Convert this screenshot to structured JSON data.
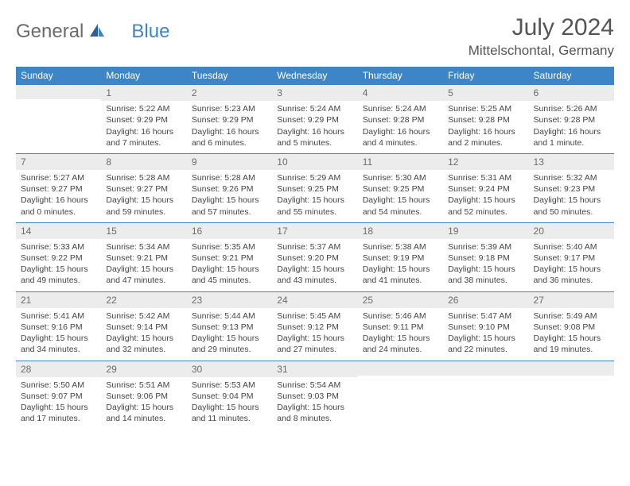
{
  "brand": {
    "part1": "General",
    "part2": "Blue"
  },
  "title": "July 2024",
  "location": "Mittelschontal, Germany",
  "colors": {
    "header_bg": "#3d85c6",
    "header_text": "#ffffff",
    "daynum_bg": "#ececec",
    "border": "#3d85c6",
    "text": "#444444",
    "brand_gray": "#6b6b6b",
    "brand_blue": "#3d85c6"
  },
  "weekdays": [
    "Sunday",
    "Monday",
    "Tuesday",
    "Wednesday",
    "Thursday",
    "Friday",
    "Saturday"
  ],
  "weeks": [
    [
      {
        "n": "",
        "sr": "",
        "ss": "",
        "dl": ""
      },
      {
        "n": "1",
        "sr": "Sunrise: 5:22 AM",
        "ss": "Sunset: 9:29 PM",
        "dl": "Daylight: 16 hours and 7 minutes."
      },
      {
        "n": "2",
        "sr": "Sunrise: 5:23 AM",
        "ss": "Sunset: 9:29 PM",
        "dl": "Daylight: 16 hours and 6 minutes."
      },
      {
        "n": "3",
        "sr": "Sunrise: 5:24 AM",
        "ss": "Sunset: 9:29 PM",
        "dl": "Daylight: 16 hours and 5 minutes."
      },
      {
        "n": "4",
        "sr": "Sunrise: 5:24 AM",
        "ss": "Sunset: 9:28 PM",
        "dl": "Daylight: 16 hours and 4 minutes."
      },
      {
        "n": "5",
        "sr": "Sunrise: 5:25 AM",
        "ss": "Sunset: 9:28 PM",
        "dl": "Daylight: 16 hours and 2 minutes."
      },
      {
        "n": "6",
        "sr": "Sunrise: 5:26 AM",
        "ss": "Sunset: 9:28 PM",
        "dl": "Daylight: 16 hours and 1 minute."
      }
    ],
    [
      {
        "n": "7",
        "sr": "Sunrise: 5:27 AM",
        "ss": "Sunset: 9:27 PM",
        "dl": "Daylight: 16 hours and 0 minutes."
      },
      {
        "n": "8",
        "sr": "Sunrise: 5:28 AM",
        "ss": "Sunset: 9:27 PM",
        "dl": "Daylight: 15 hours and 59 minutes."
      },
      {
        "n": "9",
        "sr": "Sunrise: 5:28 AM",
        "ss": "Sunset: 9:26 PM",
        "dl": "Daylight: 15 hours and 57 minutes."
      },
      {
        "n": "10",
        "sr": "Sunrise: 5:29 AM",
        "ss": "Sunset: 9:25 PM",
        "dl": "Daylight: 15 hours and 55 minutes."
      },
      {
        "n": "11",
        "sr": "Sunrise: 5:30 AM",
        "ss": "Sunset: 9:25 PM",
        "dl": "Daylight: 15 hours and 54 minutes."
      },
      {
        "n": "12",
        "sr": "Sunrise: 5:31 AM",
        "ss": "Sunset: 9:24 PM",
        "dl": "Daylight: 15 hours and 52 minutes."
      },
      {
        "n": "13",
        "sr": "Sunrise: 5:32 AM",
        "ss": "Sunset: 9:23 PM",
        "dl": "Daylight: 15 hours and 50 minutes."
      }
    ],
    [
      {
        "n": "14",
        "sr": "Sunrise: 5:33 AM",
        "ss": "Sunset: 9:22 PM",
        "dl": "Daylight: 15 hours and 49 minutes."
      },
      {
        "n": "15",
        "sr": "Sunrise: 5:34 AM",
        "ss": "Sunset: 9:21 PM",
        "dl": "Daylight: 15 hours and 47 minutes."
      },
      {
        "n": "16",
        "sr": "Sunrise: 5:35 AM",
        "ss": "Sunset: 9:21 PM",
        "dl": "Daylight: 15 hours and 45 minutes."
      },
      {
        "n": "17",
        "sr": "Sunrise: 5:37 AM",
        "ss": "Sunset: 9:20 PM",
        "dl": "Daylight: 15 hours and 43 minutes."
      },
      {
        "n": "18",
        "sr": "Sunrise: 5:38 AM",
        "ss": "Sunset: 9:19 PM",
        "dl": "Daylight: 15 hours and 41 minutes."
      },
      {
        "n": "19",
        "sr": "Sunrise: 5:39 AM",
        "ss": "Sunset: 9:18 PM",
        "dl": "Daylight: 15 hours and 38 minutes."
      },
      {
        "n": "20",
        "sr": "Sunrise: 5:40 AM",
        "ss": "Sunset: 9:17 PM",
        "dl": "Daylight: 15 hours and 36 minutes."
      }
    ],
    [
      {
        "n": "21",
        "sr": "Sunrise: 5:41 AM",
        "ss": "Sunset: 9:16 PM",
        "dl": "Daylight: 15 hours and 34 minutes."
      },
      {
        "n": "22",
        "sr": "Sunrise: 5:42 AM",
        "ss": "Sunset: 9:14 PM",
        "dl": "Daylight: 15 hours and 32 minutes."
      },
      {
        "n": "23",
        "sr": "Sunrise: 5:44 AM",
        "ss": "Sunset: 9:13 PM",
        "dl": "Daylight: 15 hours and 29 minutes."
      },
      {
        "n": "24",
        "sr": "Sunrise: 5:45 AM",
        "ss": "Sunset: 9:12 PM",
        "dl": "Daylight: 15 hours and 27 minutes."
      },
      {
        "n": "25",
        "sr": "Sunrise: 5:46 AM",
        "ss": "Sunset: 9:11 PM",
        "dl": "Daylight: 15 hours and 24 minutes."
      },
      {
        "n": "26",
        "sr": "Sunrise: 5:47 AM",
        "ss": "Sunset: 9:10 PM",
        "dl": "Daylight: 15 hours and 22 minutes."
      },
      {
        "n": "27",
        "sr": "Sunrise: 5:49 AM",
        "ss": "Sunset: 9:08 PM",
        "dl": "Daylight: 15 hours and 19 minutes."
      }
    ],
    [
      {
        "n": "28",
        "sr": "Sunrise: 5:50 AM",
        "ss": "Sunset: 9:07 PM",
        "dl": "Daylight: 15 hours and 17 minutes."
      },
      {
        "n": "29",
        "sr": "Sunrise: 5:51 AM",
        "ss": "Sunset: 9:06 PM",
        "dl": "Daylight: 15 hours and 14 minutes."
      },
      {
        "n": "30",
        "sr": "Sunrise: 5:53 AM",
        "ss": "Sunset: 9:04 PM",
        "dl": "Daylight: 15 hours and 11 minutes."
      },
      {
        "n": "31",
        "sr": "Sunrise: 5:54 AM",
        "ss": "Sunset: 9:03 PM",
        "dl": "Daylight: 15 hours and 8 minutes."
      },
      {
        "n": "",
        "sr": "",
        "ss": "",
        "dl": ""
      },
      {
        "n": "",
        "sr": "",
        "ss": "",
        "dl": ""
      },
      {
        "n": "",
        "sr": "",
        "ss": "",
        "dl": ""
      }
    ]
  ]
}
